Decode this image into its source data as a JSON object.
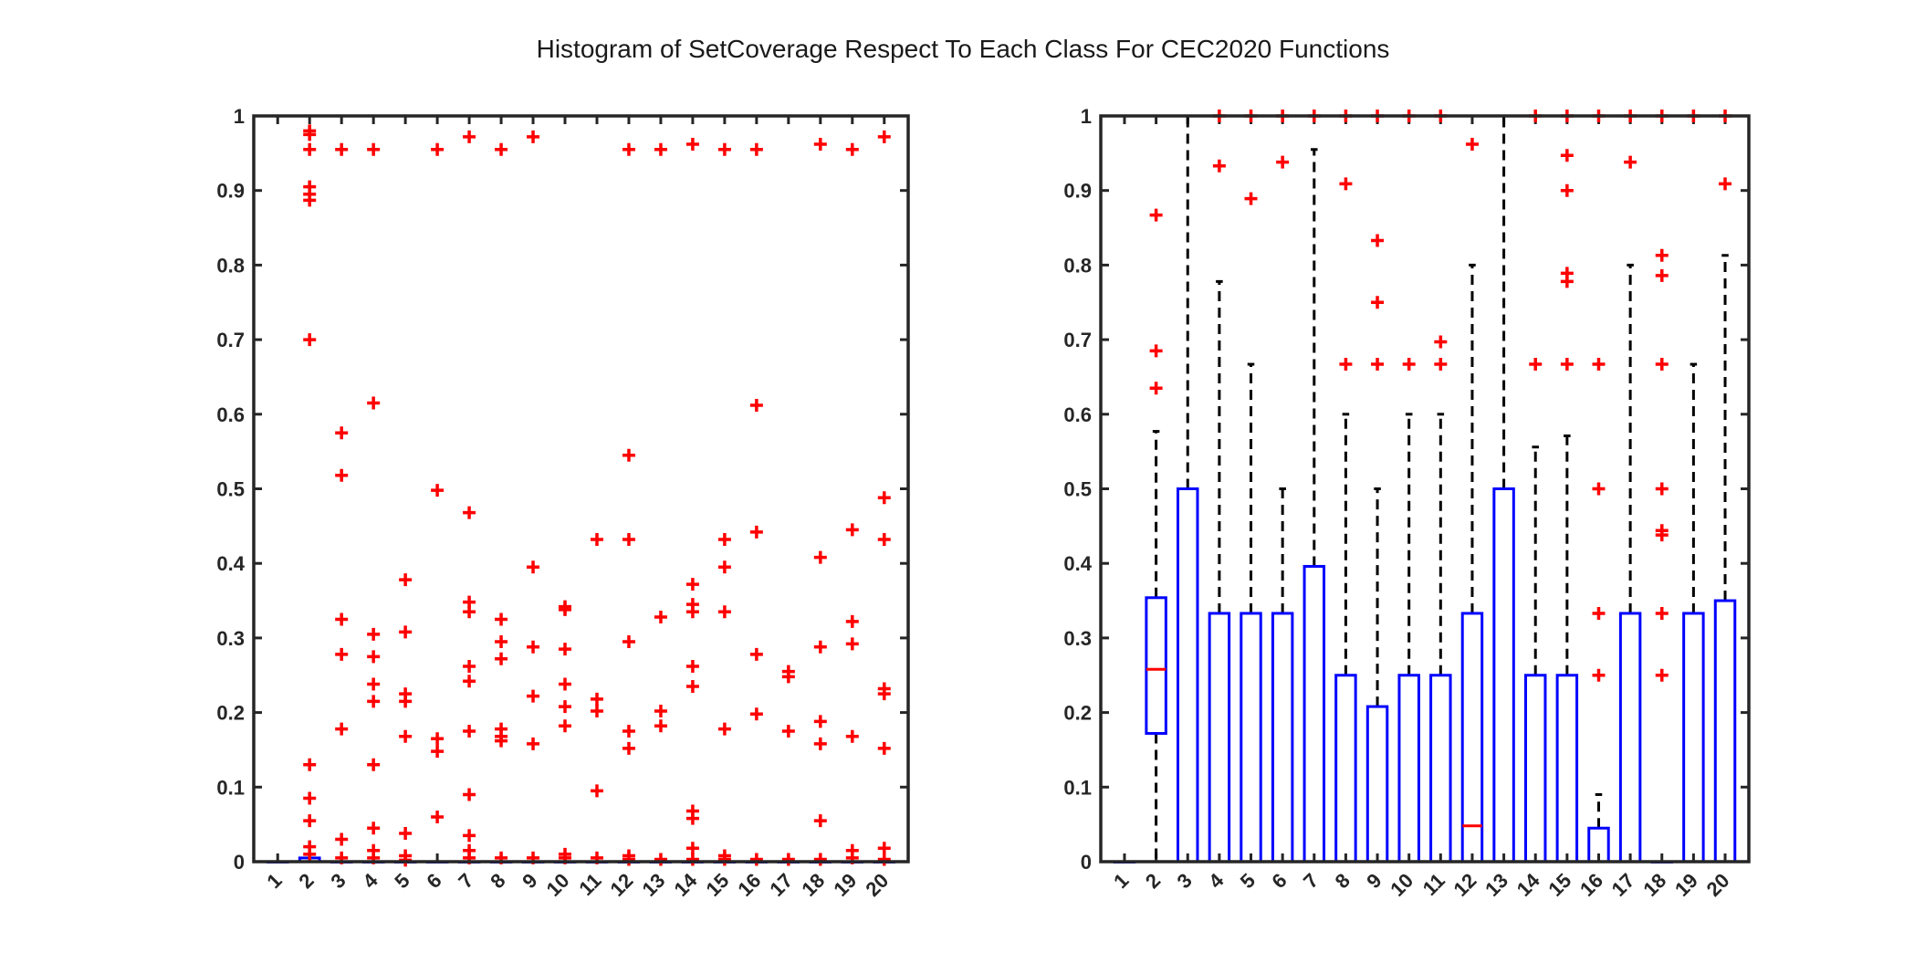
{
  "figure": {
    "title": "Histogram of SetCoverage Respect To Each Class For CEC2020 Functions"
  },
  "chart_data": [
    {
      "type": "boxplot",
      "title": "",
      "xlabel": "",
      "ylabel": "",
      "ylim": [
        0,
        1
      ],
      "yticks": [
        "0",
        "0.1",
        "0.2",
        "0.3",
        "0.4",
        "0.5",
        "0.6",
        "0.7",
        "0.8",
        "0.9",
        "1"
      ],
      "categories": [
        "1",
        "2",
        "3",
        "4",
        "5",
        "6",
        "7",
        "8",
        "9",
        "10",
        "11",
        "12",
        "13",
        "14",
        "15",
        "16",
        "17",
        "18",
        "19",
        "20"
      ],
      "grid": false,
      "colors": {
        "box": "#0000ff",
        "median": "#ff0000",
        "outlier": "#ff0000",
        "whisker": "#000000",
        "axes": "#262626"
      },
      "boxes": [
        {
          "q1": 0,
          "median": 0,
          "q3": 0,
          "lw": 0,
          "uw": 0
        },
        {
          "q1": 0,
          "median": 0,
          "q3": 0.005,
          "lw": 0,
          "uw": 0.005
        },
        {
          "q1": 0,
          "median": 0,
          "q3": 0,
          "lw": 0,
          "uw": 0
        },
        {
          "q1": 0,
          "median": 0,
          "q3": 0,
          "lw": 0,
          "uw": 0
        },
        {
          "q1": 0,
          "median": 0,
          "q3": 0,
          "lw": 0,
          "uw": 0
        },
        {
          "q1": 0,
          "median": 0,
          "q3": 0,
          "lw": 0,
          "uw": 0
        },
        {
          "q1": 0,
          "median": 0,
          "q3": 0,
          "lw": 0,
          "uw": 0
        },
        {
          "q1": 0,
          "median": 0,
          "q3": 0,
          "lw": 0,
          "uw": 0
        },
        {
          "q1": 0,
          "median": 0,
          "q3": 0,
          "lw": 0,
          "uw": 0
        },
        {
          "q1": 0,
          "median": 0,
          "q3": 0,
          "lw": 0,
          "uw": 0
        },
        {
          "q1": 0,
          "median": 0,
          "q3": 0,
          "lw": 0,
          "uw": 0
        },
        {
          "q1": 0,
          "median": 0,
          "q3": 0,
          "lw": 0,
          "uw": 0
        },
        {
          "q1": 0,
          "median": 0,
          "q3": 0,
          "lw": 0,
          "uw": 0
        },
        {
          "q1": 0,
          "median": 0,
          "q3": 0,
          "lw": 0,
          "uw": 0
        },
        {
          "q1": 0,
          "median": 0,
          "q3": 0,
          "lw": 0,
          "uw": 0
        },
        {
          "q1": 0,
          "median": 0,
          "q3": 0,
          "lw": 0,
          "uw": 0
        },
        {
          "q1": 0,
          "median": 0,
          "q3": 0,
          "lw": 0,
          "uw": 0
        },
        {
          "q1": 0,
          "median": 0,
          "q3": 0,
          "lw": 0,
          "uw": 0
        },
        {
          "q1": 0,
          "median": 0,
          "q3": 0,
          "lw": 0,
          "uw": 0
        },
        {
          "q1": 0,
          "median": 0,
          "q3": 0,
          "lw": 0,
          "uw": 0
        }
      ],
      "outliers": [
        [],
        [
          0.98,
          0.975,
          0.955,
          0.905,
          0.895,
          0.887,
          0.7,
          0.13,
          0.085,
          0.055,
          0.02,
          0.01
        ],
        [
          0.955,
          0.575,
          0.518,
          0.325,
          0.278,
          0.178,
          0.03,
          0.005
        ],
        [
          0.955,
          0.615,
          0.305,
          0.275,
          0.238,
          0.215,
          0.13,
          0.045,
          0.015,
          0.005
        ],
        [
          0.378,
          0.308,
          0.225,
          0.215,
          0.168,
          0.038,
          0.008,
          0.002
        ],
        [
          0.955,
          0.498,
          0.165,
          0.148,
          0.06
        ],
        [
          0.972,
          0.468,
          0.348,
          0.335,
          0.262,
          0.242,
          0.175,
          0.09,
          0.035,
          0.015,
          0.005
        ],
        [
          0.955,
          0.325,
          0.295,
          0.272,
          0.178,
          0.168,
          0.162,
          0.005
        ],
        [
          0.972,
          0.395,
          0.288,
          0.222,
          0.158,
          0.005
        ],
        [
          0.342,
          0.338,
          0.285,
          0.238,
          0.208,
          0.182,
          0.01,
          0.005
        ],
        [
          0.432,
          0.218,
          0.202,
          0.095,
          0.005
        ],
        [
          0.955,
          0.545,
          0.432,
          0.295,
          0.175,
          0.152,
          0.008,
          0.003
        ],
        [
          0.955,
          0.328,
          0.202,
          0.182,
          0.003
        ],
        [
          0.962,
          0.372,
          0.345,
          0.335,
          0.262,
          0.235,
          0.068,
          0.058,
          0.018,
          0.003
        ],
        [
          0.955,
          0.432,
          0.395,
          0.335,
          0.178,
          0.008,
          0.003
        ],
        [
          0.955,
          0.612,
          0.442,
          0.278,
          0.198,
          0.003
        ],
        [
          0.255,
          0.248,
          0.175,
          0.003
        ],
        [
          0.962,
          0.408,
          0.288,
          0.188,
          0.158,
          0.055,
          0.003
        ],
        [
          0.955,
          0.445,
          0.322,
          0.292,
          0.168,
          0.015,
          0.005
        ],
        [
          0.972,
          0.488,
          0.432,
          0.232,
          0.225,
          0.152,
          0.018,
          0.003
        ]
      ]
    },
    {
      "type": "boxplot",
      "title": "",
      "xlabel": "",
      "ylabel": "",
      "ylim": [
        0,
        1
      ],
      "yticks": [
        "0",
        "0.1",
        "0.2",
        "0.3",
        "0.4",
        "0.5",
        "0.6",
        "0.7",
        "0.8",
        "0.9",
        "1"
      ],
      "categories": [
        "1",
        "2",
        "3",
        "4",
        "5",
        "6",
        "7",
        "8",
        "9",
        "10",
        "11",
        "12",
        "13",
        "14",
        "15",
        "16",
        "17",
        "18",
        "19",
        "20"
      ],
      "grid": false,
      "colors": {
        "box": "#0000ff",
        "median": "#ff0000",
        "outlier": "#ff0000",
        "whisker": "#000000",
        "axes": "#262626"
      },
      "boxes": [
        {
          "q1": 0,
          "median": 0,
          "q3": 0,
          "lw": 0,
          "uw": 0
        },
        {
          "q1": 0.172,
          "median": 0.258,
          "q3": 0.354,
          "lw": 0,
          "uw": 0.577
        },
        {
          "q1": 0,
          "median": 0,
          "q3": 0.5,
          "lw": 0,
          "uw": 1
        },
        {
          "q1": 0,
          "median": 0,
          "q3": 0.333,
          "lw": 0,
          "uw": 0.778
        },
        {
          "q1": 0,
          "median": 0,
          "q3": 0.333,
          "lw": 0,
          "uw": 0.667
        },
        {
          "q1": 0,
          "median": 0,
          "q3": 0.333,
          "lw": 0,
          "uw": 0.5
        },
        {
          "q1": 0,
          "median": 0,
          "q3": 0.396,
          "lw": 0,
          "uw": 0.955
        },
        {
          "q1": 0,
          "median": 0,
          "q3": 0.25,
          "lw": 0,
          "uw": 0.6
        },
        {
          "q1": 0,
          "median": 0,
          "q3": 0.208,
          "lw": 0,
          "uw": 0.5
        },
        {
          "q1": 0,
          "median": 0,
          "q3": 0.25,
          "lw": 0,
          "uw": 0.6
        },
        {
          "q1": 0,
          "median": 0,
          "q3": 0.25,
          "lw": 0,
          "uw": 0.6
        },
        {
          "q1": 0,
          "median": 0.048,
          "q3": 0.333,
          "lw": 0,
          "uw": 0.8
        },
        {
          "q1": 0,
          "median": 0,
          "q3": 0.5,
          "lw": 0,
          "uw": 1
        },
        {
          "q1": 0,
          "median": 0,
          "q3": 0.25,
          "lw": 0,
          "uw": 0.556
        },
        {
          "q1": 0,
          "median": 0,
          "q3": 0.25,
          "lw": 0,
          "uw": 0.571
        },
        {
          "q1": 0,
          "median": 0,
          "q3": 0.045,
          "lw": 0,
          "uw": 0.09
        },
        {
          "q1": 0,
          "median": 0,
          "q3": 0.333,
          "lw": 0,
          "uw": 0.8
        },
        {
          "q1": 0,
          "median": 0,
          "q3": 0,
          "lw": 0,
          "uw": 0
        },
        {
          "q1": 0,
          "median": 0,
          "q3": 0.333,
          "lw": 0,
          "uw": 0.667
        },
        {
          "q1": 0,
          "median": 0,
          "q3": 0.35,
          "lw": 0,
          "uw": 0.813
        }
      ],
      "outliers": [
        [],
        [
          0.867,
          0.685,
          0.635
        ],
        [],
        [
          1,
          0.933
        ],
        [
          1,
          0.889
        ],
        [
          1,
          0.938
        ],
        [
          1
        ],
        [
          1,
          0.909,
          0.667
        ],
        [
          1,
          0.833,
          0.75,
          0.667
        ],
        [
          1,
          0.667
        ],
        [
          1,
          0.697,
          0.667
        ],
        [
          0.962
        ],
        [],
        [
          1,
          0.667
        ],
        [
          1,
          0.947,
          0.9,
          0.789,
          0.778,
          0.667
        ],
        [
          1,
          0.667,
          0.5,
          0.333,
          0.25
        ],
        [
          1,
          0.938
        ],
        [
          1,
          0.813,
          0.786,
          0.667,
          0.5,
          0.444,
          0.438,
          0.333,
          0.25
        ],
        [
          1
        ],
        [
          1,
          0.909
        ]
      ]
    }
  ]
}
